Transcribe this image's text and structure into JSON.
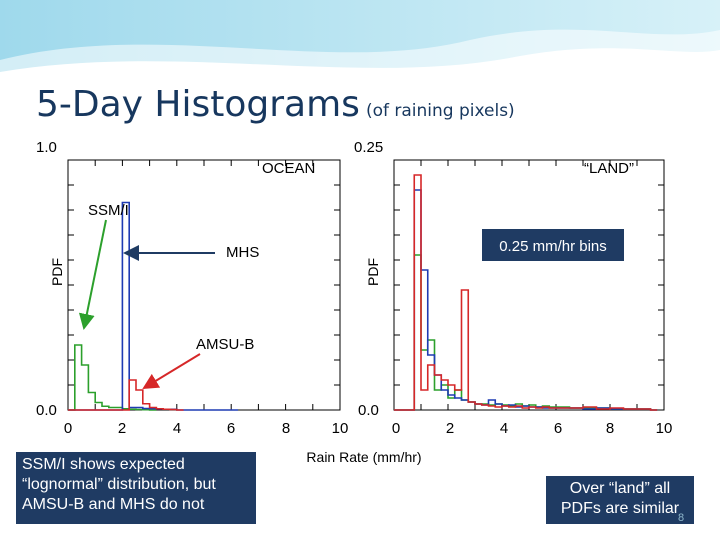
{
  "slide": {
    "title": "5-Day Histograms",
    "subtitle": "(of raining pixels)",
    "note_left": "SSM/I shows expected “lognormal” distribution, but AMSU-B and MHS do not",
    "note_right": "Over  “land” all PDFs are similar",
    "page_number": "8"
  },
  "colors": {
    "ssmi": "#2ca02c",
    "mhs": "#1f3bb3",
    "amsub": "#d62728",
    "note_bg": "#1f3b63"
  },
  "chart_data": [
    {
      "type": "line",
      "panel": "ocean",
      "title": "OCEAN",
      "xlabel": "",
      "ylabel": "PDF",
      "xlim": [
        0,
        10
      ],
      "ylim": [
        0,
        1.0
      ],
      "y_tick_labels": [
        "0.0",
        "1.0"
      ],
      "x_tick_labels": [
        "0",
        "2",
        "4",
        "6",
        "8",
        "10"
      ],
      "bin_width": 0.25,
      "annotations": [
        "SSM/I",
        "MHS",
        "AMSU-B"
      ],
      "series": [
        {
          "name": "SSM/I",
          "x": [
            0.0,
            0.25,
            0.5,
            0.75,
            1.0,
            1.25,
            1.5,
            1.75,
            2.0,
            2.25,
            2.5,
            2.75,
            3.0
          ],
          "y": [
            0.0,
            0.26,
            0.18,
            0.07,
            0.03,
            0.015,
            0.01,
            0.01,
            0.005,
            0.003,
            0.002,
            0.001,
            0.0
          ]
        },
        {
          "name": "MHS",
          "x": [
            0.0,
            1.75,
            2.0,
            2.25,
            2.5,
            2.75,
            3.0,
            3.25,
            3.5,
            3.75,
            4.0,
            5.0,
            6.0
          ],
          "y": [
            0.0,
            0.0,
            0.83,
            0.01,
            0.01,
            0.006,
            0.005,
            0.004,
            0.003,
            0.003,
            0.0,
            0.0,
            0.0
          ]
        },
        {
          "name": "AMSU-B",
          "x": [
            0.0,
            2.0,
            2.25,
            2.5,
            2.75,
            3.0,
            3.25,
            3.5,
            3.75,
            4.0
          ],
          "y": [
            0.0,
            0.0,
            0.12,
            0.08,
            0.025,
            0.01,
            0.005,
            0.003,
            0.002,
            0.0
          ]
        }
      ]
    },
    {
      "type": "line",
      "panel": "land",
      "title": "“LAND”",
      "xlabel": "Rain Rate (mm/hr)",
      "ylabel": "PDF",
      "xlim": [
        0,
        10
      ],
      "ylim": [
        0,
        0.25
      ],
      "y_tick_labels": [
        "0.0",
        "0.25"
      ],
      "x_tick_labels": [
        "0",
        "2",
        "4",
        "6",
        "8",
        "10"
      ],
      "bin_width": 0.25,
      "annotations": [
        "0.25 mm/hr bins"
      ],
      "series": [
        {
          "name": "SSM/I",
          "x": [
            0.0,
            0.5,
            0.75,
            1.0,
            1.25,
            1.5,
            1.75,
            2.0,
            2.25,
            2.5,
            2.75,
            3.0,
            3.25,
            3.5,
            3.75,
            4.0,
            4.25,
            4.5,
            4.75,
            5.0,
            5.25,
            5.5,
            5.75,
            6.0,
            6.5,
            7.0,
            7.5,
            8.0,
            8.5,
            9.0,
            9.5
          ],
          "y": [
            0.0,
            0.0,
            0.155,
            0.06,
            0.07,
            0.02,
            0.025,
            0.012,
            0.02,
            0.01,
            0.008,
            0.006,
            0.006,
            0.005,
            0.006,
            0.005,
            0.004,
            0.006,
            0.004,
            0.005,
            0.003,
            0.004,
            0.003,
            0.003,
            0.002,
            0.002,
            0.002,
            0.001,
            0.001,
            0.001,
            0.0
          ]
        },
        {
          "name": "MHS",
          "x": [
            0.0,
            0.5,
            0.75,
            1.0,
            1.25,
            1.5,
            1.75,
            2.0,
            2.25,
            2.5,
            2.75,
            3.0,
            3.25,
            3.5,
            3.75,
            4.0,
            4.25,
            4.5,
            4.75,
            5.0,
            5.25,
            5.5,
            5.75,
            6.0,
            6.5,
            7.0,
            7.5,
            8.0,
            8.5,
            9.0,
            9.5
          ],
          "y": [
            0.0,
            0.0,
            0.22,
            0.14,
            0.055,
            0.035,
            0.02,
            0.015,
            0.012,
            0.01,
            0.008,
            0.006,
            0.005,
            0.01,
            0.006,
            0.004,
            0.005,
            0.003,
            0.004,
            0.003,
            0.003,
            0.002,
            0.002,
            0.002,
            0.002,
            0.001,
            0.002,
            0.001,
            0.001,
            0.001,
            0.0
          ]
        },
        {
          "name": "AMSU-B",
          "x": [
            0.0,
            0.5,
            0.75,
            1.0,
            1.25,
            1.5,
            1.75,
            2.0,
            2.25,
            2.5,
            2.75,
            3.0,
            3.25,
            3.5,
            3.75,
            4.0,
            4.25,
            4.5,
            4.75,
            5.0,
            5.25,
            5.5,
            5.75,
            6.0,
            6.5,
            7.0,
            7.5,
            8.0,
            8.5,
            9.0,
            9.5
          ],
          "y": [
            0.0,
            0.0,
            0.235,
            0.02,
            0.045,
            0.035,
            0.03,
            0.025,
            0.02,
            0.12,
            0.008,
            0.006,
            0.005,
            0.004,
            0.003,
            0.004,
            0.003,
            0.004,
            0.002,
            0.003,
            0.002,
            0.003,
            0.002,
            0.002,
            0.002,
            0.003,
            0.001,
            0.002,
            0.001,
            0.001,
            0.0
          ]
        }
      ]
    }
  ]
}
